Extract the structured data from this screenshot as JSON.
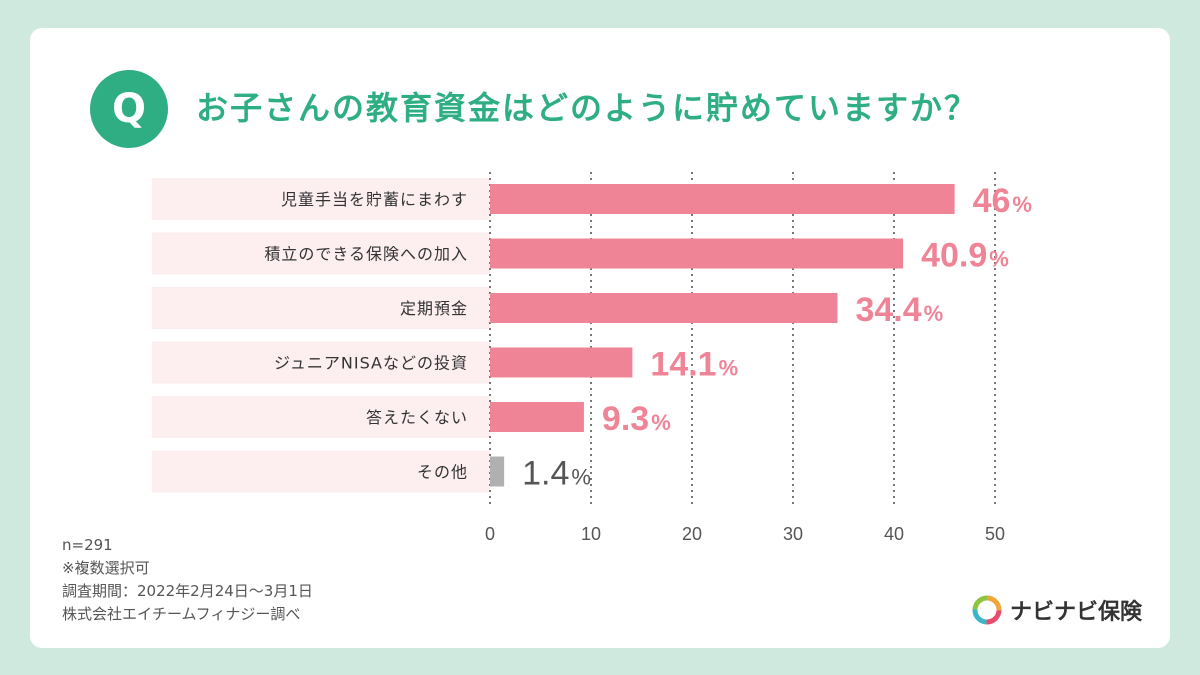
{
  "header": {
    "badge": "Q",
    "question": "お子さんの教育資金はどのように貯めていますか？"
  },
  "notes": {
    "n": "n=291",
    "multiple": "※複数選択可",
    "period": "調査期間：2022年2月24日～3月1日",
    "source": "株式会社エイチームフィナジー調べ"
  },
  "brand": {
    "name": "ナビナビ保険"
  },
  "colors": {
    "accent": "#2fae84",
    "bar": "#f08497",
    "bar_other": "#b0b0b0",
    "label_bg": "#fdeef0",
    "value_text": "#f08497",
    "value_text_other": "#555555"
  },
  "chart_data": {
    "type": "bar",
    "orientation": "horizontal",
    "categories": [
      "児童手当を貯蓄にまわす",
      "積立のできる保険への加入",
      "定期預金",
      "ジュニアNISAなどの投資",
      "答えたくない",
      "その他"
    ],
    "values": [
      46,
      40.9,
      34.4,
      14.1,
      9.3,
      1.4
    ],
    "value_labels": [
      "46",
      "40.9",
      "34.4",
      "14.1",
      "9.3",
      "1.4"
    ],
    "unit": "%",
    "xlim": [
      0,
      50
    ],
    "xticks": [
      0,
      10,
      20,
      30,
      40,
      50
    ],
    "grid": "dotted vertical"
  }
}
